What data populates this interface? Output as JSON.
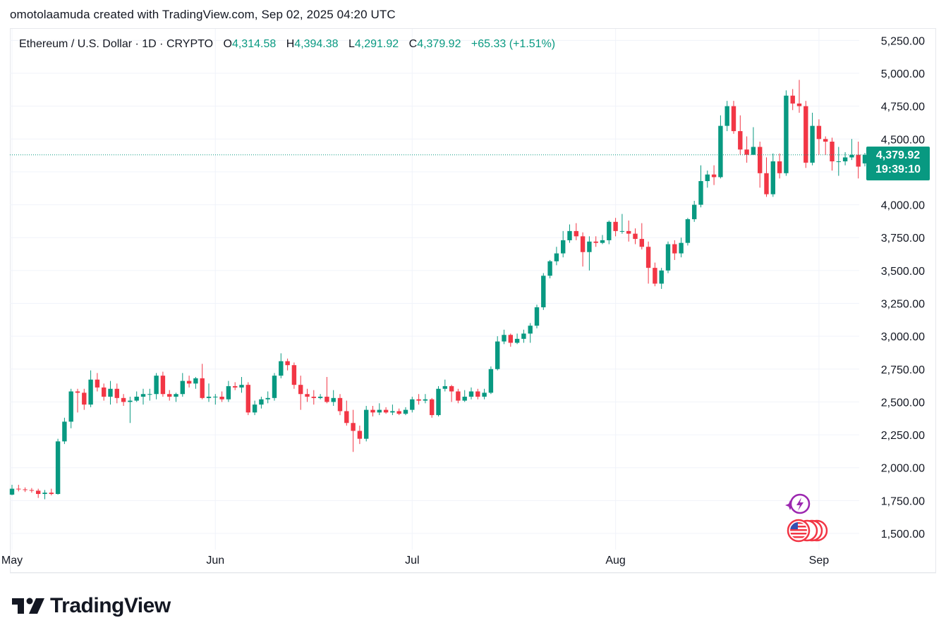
{
  "byline": "omotolaamuda created with TradingView.com, Sep 02, 2025 04:20 UTC",
  "legend": {
    "symbol": "Ethereum / U.S. Dollar · 1D · CRYPTO",
    "o_label": "O",
    "o_value": "4,314.58",
    "h_label": "H",
    "h_value": "4,394.38",
    "l_label": "L",
    "l_value": "4,291.92",
    "c_label": "C",
    "c_value": "4,379.92",
    "change": "+65.33 (+1.51%)"
  },
  "price_tag": {
    "price": "4,379.92",
    "countdown": "19:39:10"
  },
  "brand": {
    "wordmark": "TradingView"
  },
  "colors": {
    "up": "#089981",
    "down": "#f23645",
    "grid": "#f0f3fa",
    "axis_text": "#131722"
  },
  "icons": {
    "ai": "sparkle-lightning-icon",
    "events": "us-flag-events-icon"
  },
  "chart_data": {
    "type": "candlestick",
    "title": "",
    "ylim": [
      1450,
      5325
    ],
    "y_ticks": [
      1500,
      1750,
      2000,
      2250,
      2500,
      2750,
      3000,
      3250,
      3500,
      3750,
      4000,
      4250,
      4500,
      4750,
      5000,
      5250
    ],
    "y_tick_labels": [
      "1,500.00",
      "1,750.00",
      "2,000.00",
      "2,250.00",
      "2,500.00",
      "2,750.00",
      "3,000.00",
      "3,250.00",
      "3,500.00",
      "3,750.00",
      "4,000.00",
      "4,250.00",
      "4,500.00",
      "4,750.00",
      "5,000.00",
      "5,250.00"
    ],
    "x_labels": [
      {
        "label": "May",
        "index": 0
      },
      {
        "label": "Jun",
        "index": 31
      },
      {
        "label": "Jul",
        "index": 61
      },
      {
        "label": "Aug",
        "index": 92
      },
      {
        "label": "Sep",
        "index": 123
      }
    ],
    "last_price": 4379.92,
    "candles": [
      [
        1795,
        1840,
        1870,
        1790
      ],
      [
        1840,
        1835,
        1870,
        1820
      ],
      [
        1835,
        1830,
        1850,
        1815
      ],
      [
        1830,
        1825,
        1845,
        1810
      ],
      [
        1825,
        1800,
        1840,
        1770
      ],
      [
        1800,
        1810,
        1830,
        1760
      ],
      [
        1810,
        1800,
        1840,
        1790
      ],
      [
        1800,
        2200,
        2220,
        1795
      ],
      [
        2200,
        2350,
        2380,
        2180
      ],
      [
        2350,
        2580,
        2600,
        2300
      ],
      [
        2580,
        2570,
        2600,
        2420
      ],
      [
        2570,
        2480,
        2600,
        2440
      ],
      [
        2480,
        2670,
        2740,
        2460
      ],
      [
        2670,
        2610,
        2720,
        2580
      ],
      [
        2610,
        2540,
        2640,
        2510
      ],
      [
        2540,
        2600,
        2660,
        2480
      ],
      [
        2600,
        2530,
        2640,
        2490
      ],
      [
        2530,
        2500,
        2560,
        2470
      ],
      [
        2500,
        2510,
        2540,
        2340
      ],
      [
        2510,
        2540,
        2580,
        2500
      ],
      [
        2540,
        2560,
        2600,
        2480
      ],
      [
        2560,
        2560,
        2600,
        2510
      ],
      [
        2560,
        2700,
        2720,
        2520
      ],
      [
        2700,
        2560,
        2730,
        2540
      ],
      [
        2560,
        2540,
        2590,
        2510
      ],
      [
        2540,
        2560,
        2570,
        2500
      ],
      [
        2560,
        2660,
        2720,
        2540
      ],
      [
        2660,
        2640,
        2700,
        2610
      ],
      [
        2640,
        2680,
        2690,
        2600
      ],
      [
        2680,
        2530,
        2790,
        2520
      ],
      [
        2530,
        2540,
        2640,
        2500
      ],
      [
        2540,
        2540,
        2560,
        2480
      ],
      [
        2540,
        2520,
        2580,
        2500
      ],
      [
        2520,
        2620,
        2660,
        2500
      ],
      [
        2620,
        2610,
        2650,
        2590
      ],
      [
        2610,
        2630,
        2690,
        2570
      ],
      [
        2630,
        2420,
        2650,
        2400
      ],
      [
        2420,
        2480,
        2510,
        2400
      ],
      [
        2480,
        2520,
        2540,
        2450
      ],
      [
        2520,
        2530,
        2580,
        2490
      ],
      [
        2530,
        2700,
        2720,
        2510
      ],
      [
        2700,
        2810,
        2870,
        2680
      ],
      [
        2810,
        2780,
        2830,
        2740
      ],
      [
        2780,
        2630,
        2800,
        2600
      ],
      [
        2630,
        2560,
        2700,
        2440
      ],
      [
        2560,
        2540,
        2600,
        2500
      ],
      [
        2540,
        2530,
        2590,
        2480
      ],
      [
        2530,
        2540,
        2560,
        2520
      ],
      [
        2540,
        2500,
        2690,
        2490
      ],
      [
        2500,
        2530,
        2590,
        2470
      ],
      [
        2530,
        2430,
        2560,
        2400
      ],
      [
        2430,
        2340,
        2510,
        2320
      ],
      [
        2340,
        2280,
        2440,
        2120
      ],
      [
        2280,
        2220,
        2320,
        2180
      ],
      [
        2220,
        2440,
        2470,
        2200
      ],
      [
        2440,
        2420,
        2470,
        2390
      ],
      [
        2420,
        2440,
        2490,
        2400
      ],
      [
        2440,
        2420,
        2460,
        2410
      ],
      [
        2420,
        2430,
        2480,
        2400
      ],
      [
        2430,
        2410,
        2450,
        2400
      ],
      [
        2410,
        2440,
        2460,
        2400
      ],
      [
        2440,
        2520,
        2540,
        2420
      ],
      [
        2520,
        2510,
        2560,
        2480
      ],
      [
        2510,
        2520,
        2560,
        2490
      ],
      [
        2520,
        2400,
        2530,
        2380
      ],
      [
        2400,
        2600,
        2620,
        2390
      ],
      [
        2600,
        2620,
        2670,
        2580
      ],
      [
        2620,
        2580,
        2630,
        2500
      ],
      [
        2580,
        2510,
        2600,
        2490
      ],
      [
        2510,
        2540,
        2590,
        2500
      ],
      [
        2540,
        2580,
        2610,
        2520
      ],
      [
        2580,
        2540,
        2600,
        2520
      ],
      [
        2540,
        2570,
        2600,
        2520
      ],
      [
        2570,
        2750,
        2770,
        2560
      ],
      [
        2750,
        2960,
        3000,
        2740
      ],
      [
        2960,
        3010,
        3050,
        2940
      ],
      [
        3010,
        2950,
        3020,
        2920
      ],
      [
        2950,
        2980,
        3020,
        2940
      ],
      [
        2980,
        3020,
        3050,
        2950
      ],
      [
        3020,
        3080,
        3100,
        2950
      ],
      [
        3080,
        3220,
        3240,
        3060
      ],
      [
        3220,
        3460,
        3480,
        3200
      ],
      [
        3460,
        3570,
        3580,
        3440
      ],
      [
        3570,
        3630,
        3680,
        3540
      ],
      [
        3630,
        3730,
        3800,
        3600
      ],
      [
        3730,
        3800,
        3850,
        3710
      ],
      [
        3800,
        3760,
        3860,
        3730
      ],
      [
        3760,
        3640,
        3790,
        3530
      ],
      [
        3640,
        3720,
        3760,
        3500
      ],
      [
        3720,
        3710,
        3760,
        3680
      ],
      [
        3710,
        3730,
        3770,
        3700
      ],
      [
        3730,
        3870,
        3880,
        3700
      ],
      [
        3870,
        3800,
        3900,
        3760
      ],
      [
        3800,
        3800,
        3930,
        3780
      ],
      [
        3800,
        3780,
        3880,
        3720
      ],
      [
        3780,
        3740,
        3820,
        3700
      ],
      [
        3740,
        3680,
        3860,
        3660
      ],
      [
        3680,
        3520,
        3720,
        3400
      ],
      [
        3520,
        3400,
        3560,
        3380
      ],
      [
        3400,
        3500,
        3520,
        3360
      ],
      [
        3500,
        3700,
        3720,
        3480
      ],
      [
        3700,
        3630,
        3730,
        3580
      ],
      [
        3630,
        3710,
        3750,
        3600
      ],
      [
        3710,
        3890,
        3900,
        3690
      ],
      [
        3890,
        4000,
        4030,
        3870
      ],
      [
        4000,
        4180,
        4300,
        3980
      ],
      [
        4180,
        4230,
        4260,
        4130
      ],
      [
        4230,
        4210,
        4300,
        4150
      ],
      [
        4210,
        4600,
        4680,
        4200
      ],
      [
        4600,
        4750,
        4790,
        4560
      ],
      [
        4750,
        4560,
        4790,
        4540
      ],
      [
        4560,
        4420,
        4680,
        4380
      ],
      [
        4420,
        4380,
        4520,
        4320
      ],
      [
        4380,
        4440,
        4590,
        4380
      ],
      [
        4440,
        4240,
        4480,
        4130
      ],
      [
        4240,
        4080,
        4360,
        4060
      ],
      [
        4080,
        4330,
        4390,
        4060
      ],
      [
        4330,
        4240,
        4390,
        4200
      ],
      [
        4240,
        4830,
        4870,
        4220
      ],
      [
        4830,
        4770,
        4880,
        4720
      ],
      [
        4770,
        4750,
        4950,
        4700
      ],
      [
        4750,
        4320,
        4790,
        4280
      ],
      [
        4320,
        4600,
        4700,
        4300
      ],
      [
        4600,
        4500,
        4650,
        4380
      ],
      [
        4500,
        4480,
        4520,
        4380
      ],
      [
        4480,
        4330,
        4510,
        4260
      ],
      [
        4330,
        4330,
        4440,
        4220
      ],
      [
        4330,
        4360,
        4400,
        4300
      ],
      [
        4360,
        4380,
        4500,
        4340
      ],
      [
        4380,
        4290,
        4480,
        4200
      ],
      [
        4314.58,
        4379.92,
        4394.38,
        4291.92
      ]
    ]
  }
}
